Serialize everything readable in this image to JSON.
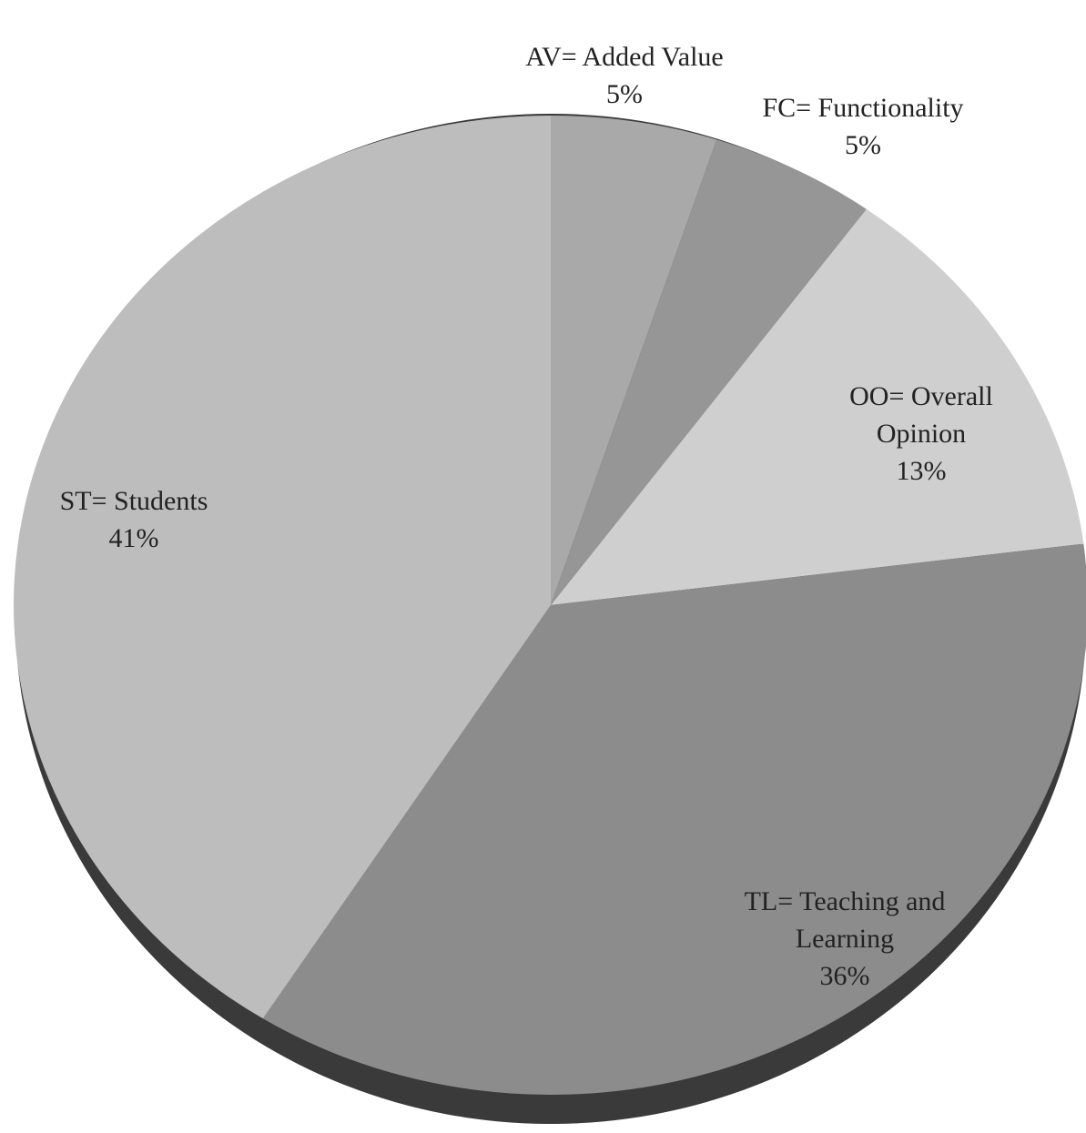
{
  "chart_data": {
    "type": "pie",
    "categories": [
      "AV= Added Value",
      "FC= Functionality",
      "OO= Overall Opinion",
      "TL= Teaching and Learning",
      "ST= Students"
    ],
    "values": [
      5,
      5,
      13,
      36,
      41
    ],
    "value_labels": [
      "5%",
      "5%",
      "13%",
      "36%",
      "41%"
    ],
    "colors": [
      "#a9a9a9",
      "#969696",
      "#cfcfcf",
      "#8c8c8c",
      "#bdbdbd"
    ]
  }
}
